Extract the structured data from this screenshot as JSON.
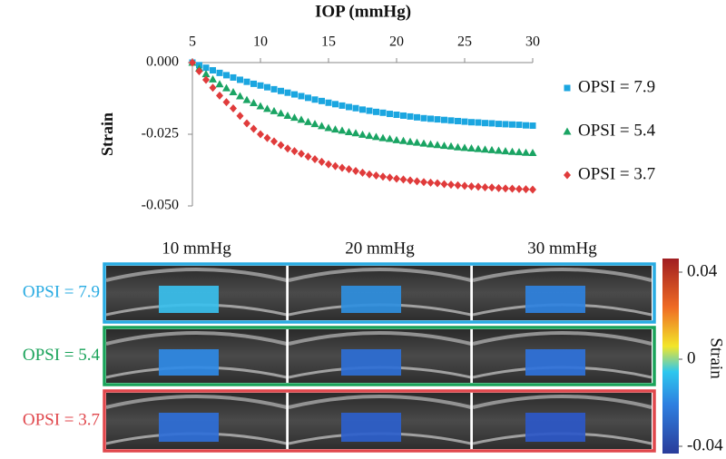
{
  "chart_data": {
    "type": "scatter",
    "title": "IOP (mmHg)",
    "y_label": "Strain",
    "x": [
      5,
      5.5,
      6,
      6.5,
      7,
      7.5,
      8,
      8.5,
      9,
      9.5,
      10,
      10.5,
      11,
      11.5,
      12,
      12.5,
      13,
      13.5,
      14,
      14.5,
      15,
      15.5,
      16,
      16.5,
      17,
      17.5,
      18,
      18.5,
      19,
      19.5,
      20,
      20.5,
      21,
      21.5,
      22,
      22.5,
      23,
      23.5,
      24,
      24.5,
      25,
      25.5,
      26,
      26.5,
      27,
      27.5,
      28,
      28.5,
      29,
      29.5,
      30
    ],
    "series": [
      {
        "name": "OPSI = 7.9",
        "color": "#1ba6e0",
        "marker": "square",
        "values": [
          0,
          -0.0009,
          -0.0018,
          -0.0027,
          -0.0036,
          -0.0044,
          -0.0052,
          -0.006,
          -0.0067,
          -0.0074,
          -0.008,
          -0.0086,
          -0.0093,
          -0.0099,
          -0.0105,
          -0.0111,
          -0.0117,
          -0.0123,
          -0.0129,
          -0.0134,
          -0.014,
          -0.0145,
          -0.015,
          -0.0155,
          -0.0159,
          -0.0164,
          -0.0168,
          -0.0172,
          -0.0175,
          -0.0179,
          -0.0182,
          -0.0185,
          -0.0188,
          -0.0191,
          -0.0194,
          -0.0196,
          -0.0198,
          -0.02,
          -0.0202,
          -0.0204,
          -0.0206,
          -0.0208,
          -0.0209,
          -0.0211,
          -0.0212,
          -0.0214,
          -0.0215,
          -0.0216,
          -0.0217,
          -0.0219,
          -0.022
        ]
      },
      {
        "name": "OPSI = 5.4",
        "color": "#1aa463",
        "marker": "triangle",
        "values": [
          0,
          -0.002,
          -0.004,
          -0.0058,
          -0.0075,
          -0.0089,
          -0.0103,
          -0.0117,
          -0.013,
          -0.0141,
          -0.0152,
          -0.0161,
          -0.0169,
          -0.0177,
          -0.0185,
          -0.0192,
          -0.0199,
          -0.0207,
          -0.0214,
          -0.0221,
          -0.0228,
          -0.0233,
          -0.0237,
          -0.0242,
          -0.0246,
          -0.0251,
          -0.0255,
          -0.0259,
          -0.0263,
          -0.0266,
          -0.027,
          -0.0273,
          -0.0276,
          -0.0279,
          -0.0282,
          -0.0285,
          -0.0287,
          -0.029,
          -0.0292,
          -0.0295,
          -0.0297,
          -0.0299,
          -0.0301,
          -0.0303,
          -0.0305,
          -0.0307,
          -0.0309,
          -0.0311,
          -0.0312,
          -0.0314,
          -0.0315
        ]
      },
      {
        "name": "OPSI = 3.7",
        "color": "#e03b3b",
        "marker": "diamond",
        "values": [
          0,
          -0.003,
          -0.006,
          -0.0088,
          -0.0115,
          -0.0138,
          -0.016,
          -0.0186,
          -0.0212,
          -0.0231,
          -0.025,
          -0.0263,
          -0.0275,
          -0.0288,
          -0.03,
          -0.0309,
          -0.0318,
          -0.0328,
          -0.0337,
          -0.0346,
          -0.0355,
          -0.0361,
          -0.0367,
          -0.0372,
          -0.0378,
          -0.0384,
          -0.039,
          -0.0394,
          -0.0398,
          -0.0401,
          -0.0405,
          -0.0408,
          -0.0411,
          -0.0414,
          -0.0417,
          -0.0419,
          -0.0421,
          -0.0424,
          -0.0426,
          -0.0428,
          -0.043,
          -0.0432,
          -0.0433,
          -0.0435,
          -0.0436,
          -0.0438,
          -0.0439,
          -0.044,
          -0.0441,
          -0.0442,
          -0.0443
        ]
      }
    ],
    "xlim": [
      5,
      30
    ],
    "xticks": [
      5,
      10,
      15,
      20,
      25,
      30
    ],
    "ylim": [
      -0.05,
      0
    ],
    "yticks": [
      {
        "value": 0,
        "label": "0.000"
      },
      {
        "value": -0.025,
        "label": "-0.025"
      },
      {
        "value": -0.05,
        "label": "-0.050"
      }
    ],
    "legend": "right"
  },
  "figure": {
    "columns": [
      "10 mmHg",
      "20 mmHg",
      "30 mmHg"
    ],
    "rows": [
      {
        "label": "OPSI = 7.9",
        "color": "#29abe2"
      },
      {
        "label": "OPSI = 5.4",
        "color": "#1aa35a"
      },
      {
        "label": "OPSI = 3.7",
        "color": "#e0474c"
      }
    ],
    "colorbar": {
      "label": "Strain",
      "lim": [
        -0.04,
        0.04
      ],
      "ticks": [
        0.04,
        0,
        -0.04
      ]
    }
  }
}
